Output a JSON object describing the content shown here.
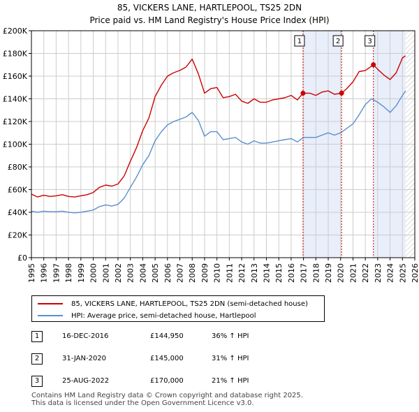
{
  "chart_data": {
    "type": "line",
    "title": "85, VICKERS LANE, HARTLEPOOL, TS25 2DN",
    "subtitle": "Price paid vs. HM Land Registry's House Price Index (HPI)",
    "xlabel": "",
    "ylabel": "",
    "xlim": [
      1995,
      2026
    ],
    "ylim": [
      0,
      200000
    ],
    "x_ticks": [
      "1995",
      "1996",
      "1997",
      "1998",
      "1999",
      "2000",
      "2001",
      "2002",
      "2003",
      "2004",
      "2005",
      "2006",
      "2007",
      "2008",
      "2009",
      "2010",
      "2011",
      "2012",
      "2013",
      "2014",
      "2015",
      "2016",
      "2017",
      "2018",
      "2019",
      "2020",
      "2021",
      "2022",
      "2023",
      "2024",
      "2025",
      "2026"
    ],
    "y_ticks": [
      {
        "value": 0,
        "label": "£0"
      },
      {
        "value": 20000,
        "label": "£20K"
      },
      {
        "value": 40000,
        "label": "£40K"
      },
      {
        "value": 60000,
        "label": "£60K"
      },
      {
        "value": 80000,
        "label": "£80K"
      },
      {
        "value": 100000,
        "label": "£100K"
      },
      {
        "value": 120000,
        "label": "£120K"
      },
      {
        "value": 140000,
        "label": "£140K"
      },
      {
        "value": 160000,
        "label": "£160K"
      },
      {
        "value": 180000,
        "label": "£180K"
      },
      {
        "value": 200000,
        "label": "£200K"
      }
    ],
    "grid": true,
    "shaded_ranges": [
      [
        2016.96,
        2020.08
      ],
      [
        2022.65,
        2025.25
      ]
    ],
    "hatch_from": 2025.25,
    "series": [
      {
        "name": "85, VICKERS LANE, HARTLEPOOL, TS25 2DN (semi-detached house)",
        "color": "#cc0000",
        "x": [
          1995,
          1995.5,
          1996,
          1996.5,
          1997,
          1997.5,
          1998,
          1998.5,
          1999,
          1999.5,
          2000,
          2000.5,
          2001,
          2001.5,
          2002,
          2002.5,
          2003,
          2003.5,
          2004,
          2004.5,
          2005,
          2005.5,
          2006,
          2006.5,
          2007,
          2007.5,
          2008,
          2008.5,
          2009,
          2009.5,
          2010,
          2010.5,
          2011,
          2011.5,
          2012,
          2012.5,
          2013,
          2013.5,
          2014,
          2014.5,
          2015,
          2015.5,
          2016,
          2016.5,
          2016.96,
          2017.5,
          2018,
          2018.5,
          2019,
          2019.5,
          2020.08,
          2020.5,
          2021,
          2021.5,
          2022,
          2022.65,
          2023,
          2023.5,
          2024,
          2024.5,
          2025,
          2025.25
        ],
        "values": [
          56000,
          53500,
          55000,
          54000,
          54500,
          55500,
          54000,
          53500,
          54500,
          55500,
          57500,
          62000,
          64000,
          63000,
          65000,
          72000,
          85000,
          97000,
          112000,
          123000,
          142000,
          152000,
          160000,
          163000,
          165000,
          168000,
          175000,
          162000,
          145000,
          149000,
          150000,
          141000,
          142000,
          144000,
          138000,
          136000,
          140000,
          137000,
          137000,
          139000,
          140000,
          141000,
          143000,
          139000,
          144950,
          145000,
          143000,
          146000,
          147000,
          144000,
          145000,
          149000,
          155000,
          164000,
          165000,
          170000,
          166000,
          161000,
          157000,
          163000,
          176000,
          178000
        ]
      },
      {
        "name": "HPI: Average price, semi-detached house, Hartlepool",
        "color": "#5b8fd0",
        "x": [
          1995,
          1995.5,
          1996,
          1996.5,
          1997,
          1997.5,
          1998,
          1998.5,
          1999,
          1999.5,
          2000,
          2000.5,
          2001,
          2001.5,
          2002,
          2002.5,
          2003,
          2003.5,
          2004,
          2004.5,
          2005,
          2005.5,
          2006,
          2006.5,
          2007,
          2007.5,
          2008,
          2008.5,
          2009,
          2009.5,
          2010,
          2010.5,
          2011,
          2011.5,
          2012,
          2012.5,
          2013,
          2013.5,
          2014,
          2014.5,
          2015,
          2015.5,
          2016,
          2016.5,
          2017,
          2017.5,
          2018,
          2018.5,
          2019,
          2019.5,
          2020,
          2020.5,
          2021,
          2021.5,
          2022,
          2022.5,
          2023,
          2023.5,
          2024,
          2024.5,
          2025,
          2025.25
        ],
        "values": [
          41000,
          40000,
          41000,
          40500,
          40500,
          41000,
          40000,
          39500,
          40000,
          41000,
          42000,
          45000,
          46500,
          45500,
          47000,
          52500,
          62000,
          71000,
          82000,
          90000,
          103000,
          111000,
          117000,
          120000,
          122000,
          124000,
          128000,
          121000,
          107000,
          111000,
          111000,
          104000,
          105000,
          106000,
          102000,
          100000,
          103000,
          101000,
          101000,
          102000,
          103000,
          104000,
          105000,
          102000,
          106000,
          106000,
          106000,
          108000,
          110000,
          108000,
          110000,
          114000,
          118000,
          126000,
          135000,
          140000,
          137000,
          133000,
          128000,
          134000,
          143000,
          147000
        ]
      }
    ],
    "sales": [
      {
        "num": "1",
        "x": 2016.96,
        "value": 144950
      },
      {
        "num": "2",
        "x": 2020.08,
        "value": 145000
      },
      {
        "num": "3",
        "x": 2022.65,
        "value": 170000
      }
    ]
  },
  "legend": {
    "property": "85, VICKERS LANE, HARTLEPOOL, TS25 2DN (semi-detached house)",
    "hpi": "HPI: Average price, semi-detached house, Hartlepool"
  },
  "sales_table": [
    {
      "num": "1",
      "date": "16-DEC-2016",
      "price": "£144,950",
      "hpi": "36% ↑ HPI"
    },
    {
      "num": "2",
      "date": "31-JAN-2020",
      "price": "£145,000",
      "hpi": "31% ↑ HPI"
    },
    {
      "num": "3",
      "date": "25-AUG-2022",
      "price": "£170,000",
      "hpi": "21% ↑ HPI"
    }
  ],
  "footer": {
    "line1": "Contains HM Land Registry data © Crown copyright and database right 2025.",
    "line2": "This data is licensed under the Open Government Licence v3.0."
  }
}
